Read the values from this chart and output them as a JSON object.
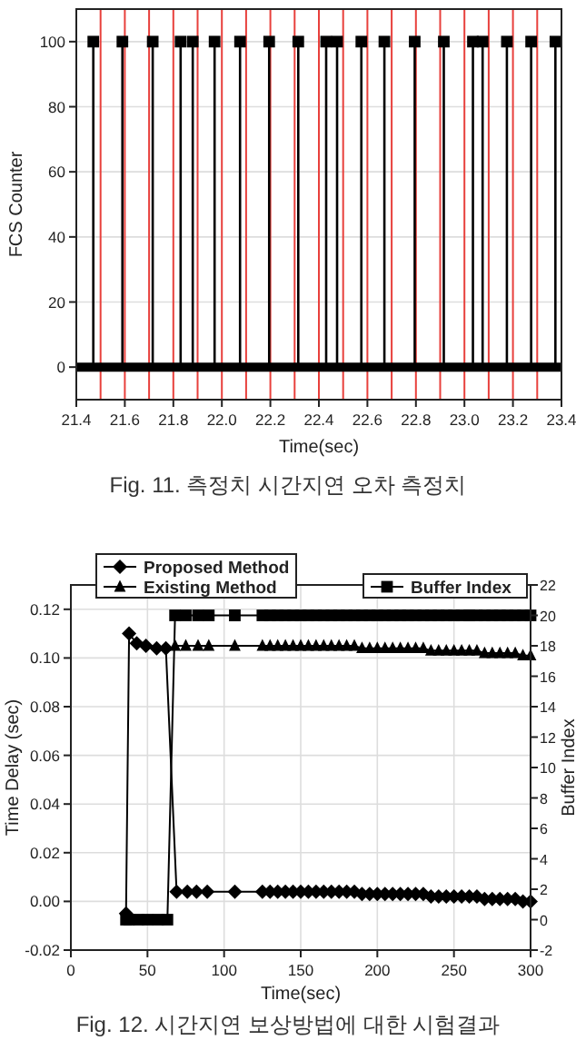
{
  "chart_data": [
    {
      "type": "lollipop",
      "xlabel": "Time(sec)",
      "ylabel": "FCS Counter",
      "annotations": [
        "Fig. 11. 측정치 시간지연 오차 측정치"
      ],
      "x": [
        21.47,
        21.59,
        21.715,
        21.83,
        21.88,
        21.97,
        22.075,
        22.195,
        22.315,
        22.43,
        22.475,
        22.575,
        22.67,
        22.795,
        22.915,
        23.035,
        23.075,
        23.175,
        23.275,
        23.375
      ],
      "series": [
        {
          "color": "#000000",
          "values": [
            100,
            100,
            100,
            100,
            100,
            100,
            100,
            100,
            100,
            100,
            100,
            100,
            100,
            100,
            100,
            100,
            100,
            100,
            100,
            100
          ]
        }
      ],
      "marker": "square",
      "xlim": [
        21.4,
        23.4
      ],
      "ylim": [
        -10,
        110
      ],
      "xticks": [
        21.4,
        21.6,
        21.8,
        {
          "value": 22,
          "label": "22.0"
        },
        22.2,
        22.4,
        22.6,
        22.8,
        {
          "value": 23,
          "label": "23.0"
        },
        23.2,
        23.4
      ],
      "yticks": [
        0,
        20,
        40,
        60,
        80,
        100
      ],
      "grid": "y",
      "ref_lines": [
        {
          "axis": "x",
          "value": 21.5,
          "color": "#e8403c"
        },
        {
          "axis": "x",
          "value": 21.6,
          "color": "#e8403c"
        },
        {
          "axis": "x",
          "value": 21.7,
          "color": "#e8403c"
        },
        {
          "axis": "x",
          "value": 21.8,
          "color": "#e8403c"
        },
        {
          "axis": "x",
          "value": 21.9,
          "color": "#e8403c"
        },
        {
          "axis": "x",
          "value": 22.0,
          "color": "#e8403c"
        },
        {
          "axis": "x",
          "value": 22.1,
          "color": "#e8403c"
        },
        {
          "axis": "x",
          "value": 22.2,
          "color": "#e8403c"
        },
        {
          "axis": "x",
          "value": 22.3,
          "color": "#e8403c"
        },
        {
          "axis": "x",
          "value": 22.4,
          "color": "#e8403c"
        },
        {
          "axis": "x",
          "value": 22.5,
          "color": "#e8403c"
        },
        {
          "axis": "x",
          "value": 22.6,
          "color": "#e8403c"
        },
        {
          "axis": "x",
          "value": 22.7,
          "color": "#e8403c"
        },
        {
          "axis": "x",
          "value": 22.8,
          "color": "#e8403c"
        },
        {
          "axis": "x",
          "value": 22.9,
          "color": "#e8403c"
        },
        {
          "axis": "x",
          "value": 23.0,
          "color": "#e8403c"
        },
        {
          "axis": "x",
          "value": 23.1,
          "color": "#e8403c"
        },
        {
          "axis": "x",
          "value": 23.2,
          "color": "#e8403c"
        },
        {
          "axis": "x",
          "value": 23.3,
          "color": "#e8403c"
        }
      ]
    },
    {
      "type": "line",
      "xlabel": "Time(sec)",
      "ylabel": "Time Delay (sec)",
      "y2label": "Buffer Index",
      "annotations": [
        "Fig. 12. 시간지연 보상방법에 대한 시험결과"
      ],
      "series": [
        {
          "name": "Proposed Method",
          "color": "#000000",
          "marker": "diamond",
          "x": [
            36,
            38,
            43,
            49,
            56,
            62,
            69,
            76,
            82,
            89,
            107,
            125,
            130,
            135,
            140,
            145,
            150,
            155,
            160,
            165,
            170,
            175,
            180,
            185,
            190,
            195,
            200,
            205,
            210,
            215,
            220,
            225,
            230,
            235,
            240,
            245,
            250,
            255,
            260,
            265,
            270,
            275,
            280,
            285,
            290,
            295,
            300
          ],
          "values": [
            -0.005,
            0.11,
            0.106,
            0.105,
            0.104,
            0.104,
            0.004,
            0.004,
            0.004,
            0.004,
            0.004,
            0.004,
            0.004,
            0.004,
            0.004,
            0.004,
            0.004,
            0.004,
            0.004,
            0.004,
            0.004,
            0.004,
            0.004,
            0.004,
            0.003,
            0.003,
            0.003,
            0.003,
            0.003,
            0.003,
            0.003,
            0.003,
            0.003,
            0.002,
            0.002,
            0.002,
            0.002,
            0.002,
            0.002,
            0.002,
            0.001,
            0.001,
            0.001,
            0.001,
            0.001,
            0.0,
            0.0
          ]
        },
        {
          "name": "Existing Method",
          "color": "#000000",
          "marker": "triangle",
          "x": [
            68,
            75,
            83,
            90,
            107,
            125,
            130,
            135,
            140,
            145,
            150,
            155,
            160,
            165,
            170,
            175,
            180,
            185,
            190,
            195,
            200,
            205,
            210,
            215,
            220,
            225,
            230,
            235,
            240,
            245,
            250,
            255,
            260,
            265,
            270,
            275,
            280,
            285,
            290,
            295,
            300
          ],
          "values": [
            0.105,
            0.105,
            0.105,
            0.105,
            0.105,
            0.105,
            0.105,
            0.105,
            0.105,
            0.105,
            0.105,
            0.105,
            0.105,
            0.105,
            0.105,
            0.105,
            0.105,
            0.105,
            0.104,
            0.104,
            0.104,
            0.104,
            0.104,
            0.104,
            0.104,
            0.104,
            0.104,
            0.103,
            0.103,
            0.103,
            0.103,
            0.103,
            0.103,
            0.103,
            0.102,
            0.102,
            0.102,
            0.102,
            0.102,
            0.101,
            0.101
          ]
        },
        {
          "name": "Buffer Index",
          "color": "#000000",
          "marker": "square",
          "axis": "y2",
          "x": [
            36,
            38,
            44,
            50,
            57,
            63,
            68,
            75,
            83,
            90,
            107,
            125,
            130,
            135,
            140,
            145,
            150,
            155,
            160,
            165,
            170,
            175,
            180,
            185,
            190,
            195,
            200,
            205,
            210,
            215,
            220,
            225,
            230,
            235,
            240,
            245,
            250,
            255,
            260,
            265,
            270,
            275,
            280,
            285,
            290,
            295,
            300
          ],
          "values": [
            0,
            0,
            0,
            0,
            0,
            0,
            20,
            20,
            20,
            20,
            20,
            20,
            20,
            20,
            20,
            20,
            20,
            20,
            20,
            20,
            20,
            20,
            20,
            20,
            20,
            20,
            20,
            20,
            20,
            20,
            20,
            20,
            20,
            20,
            20,
            20,
            20,
            20,
            20,
            20,
            20,
            20,
            20,
            20,
            20,
            20,
            20
          ]
        }
      ],
      "xlim": [
        0,
        300
      ],
      "ylim": [
        -0.02,
        0.13
      ],
      "y2lim": [
        -2,
        22
      ],
      "xticks": [
        0,
        50,
        100,
        150,
        200,
        250,
        300
      ],
      "yticks": [
        -0.02,
        {
          "value": 0,
          "label": "0.00"
        },
        0.02,
        0.04,
        0.06,
        0.08,
        {
          "value": 0.1,
          "label": "0.10"
        },
        0.12
      ],
      "y2ticks": [
        -2,
        0,
        2,
        4,
        6,
        8,
        10,
        12,
        14,
        16,
        18,
        20,
        22
      ],
      "grid": true,
      "legend": "top"
    }
  ]
}
